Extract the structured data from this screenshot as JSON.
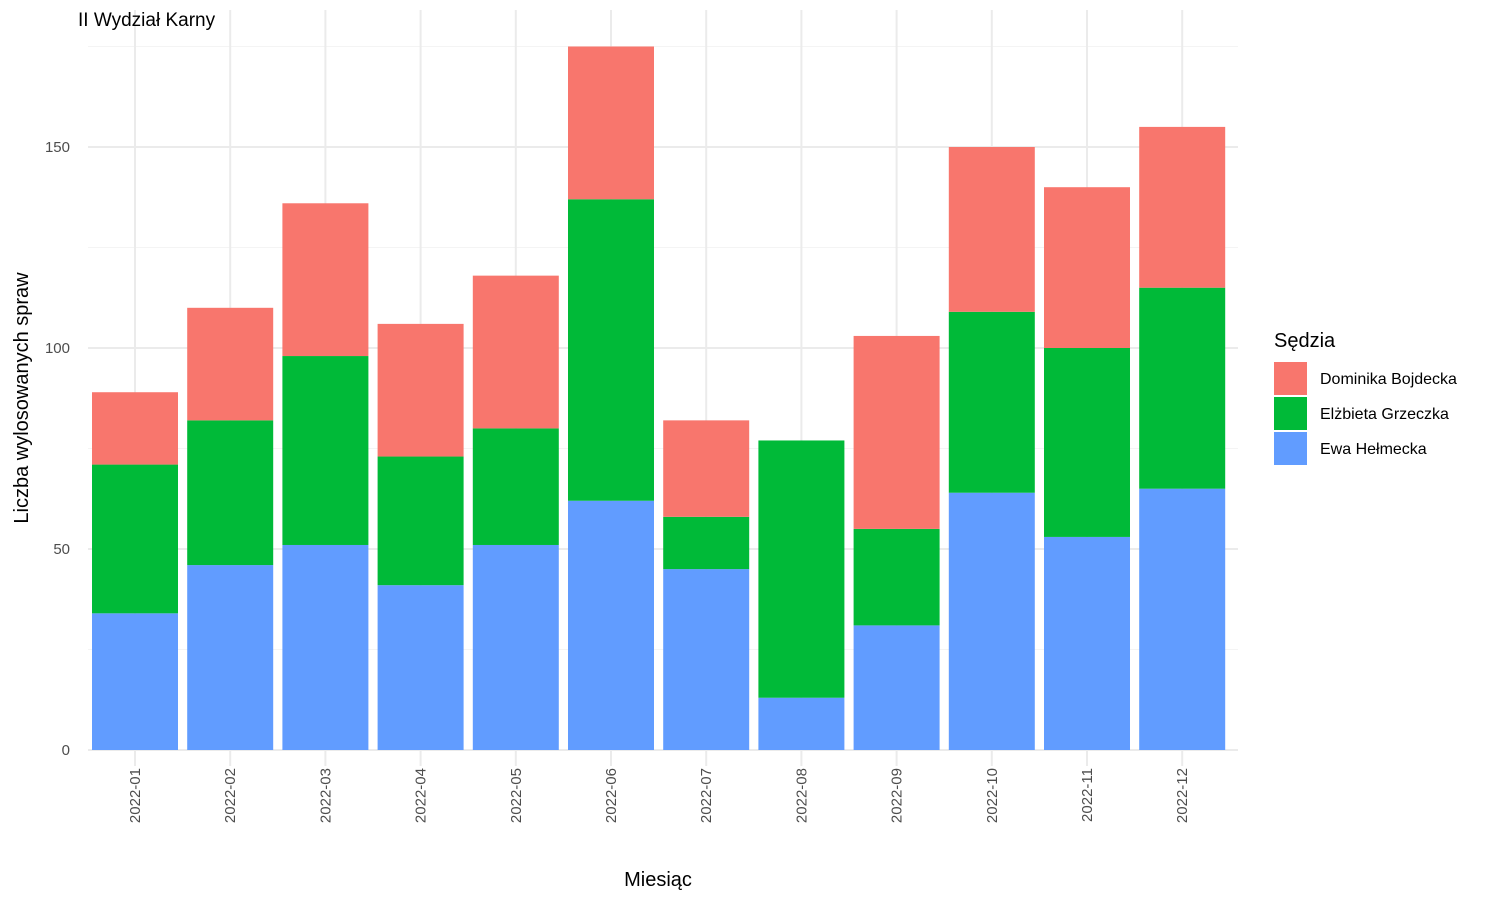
{
  "chart_data": {
    "type": "bar",
    "stacked": true,
    "title": "II Wydział Karny",
    "xlabel": "Miesiąc",
    "ylabel": "Liczba wylosowanych spraw",
    "categories": [
      "2022-01",
      "2022-02",
      "2022-03",
      "2022-04",
      "2022-05",
      "2022-06",
      "2022-07",
      "2022-08",
      "2022-09",
      "2022-10",
      "2022-11",
      "2022-12"
    ],
    "series": [
      {
        "name": "Ewa Hełmecka",
        "color": "#619CFF",
        "values": [
          34,
          46,
          51,
          41,
          51,
          62,
          45,
          13,
          31,
          64,
          53,
          65
        ]
      },
      {
        "name": "Elżbieta Grzeczka",
        "color": "#00BA38",
        "values": [
          37,
          36,
          47,
          32,
          29,
          75,
          13,
          64,
          24,
          45,
          47,
          50
        ]
      },
      {
        "name": "Dominika Bojdecka",
        "color": "#F8766D",
        "values": [
          18,
          28,
          38,
          33,
          38,
          38,
          24,
          0,
          48,
          41,
          40,
          40
        ]
      }
    ],
    "legend_order": [
      "Dominika Bojdecka",
      "Elżbieta Grzeczka",
      "Ewa Hełmecka"
    ],
    "legend_title": "Sędzia",
    "legend_position": "right",
    "ylim": [
      0,
      180
    ],
    "yticks": [
      0,
      50,
      100,
      150
    ],
    "grid": true
  }
}
